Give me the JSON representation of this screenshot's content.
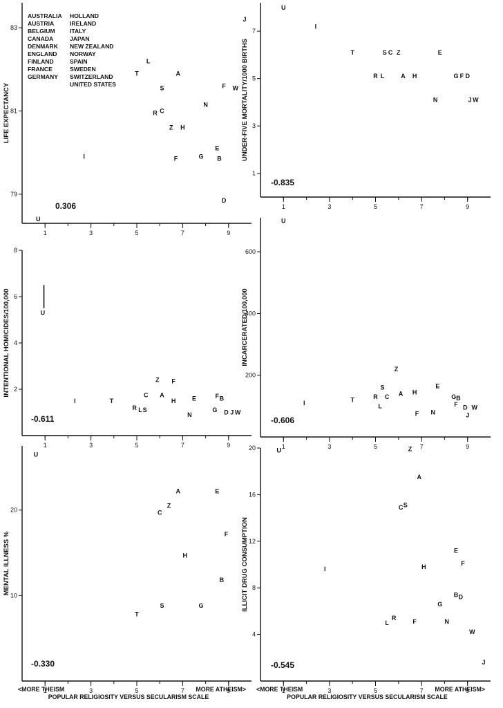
{
  "legend": {
    "col1": [
      "AUSTRALIA",
      "AUSTRIA",
      "BELGIUM",
      "CANADA",
      "DENMARK",
      "ENGLAND",
      "FINLAND",
      "FRANCE",
      "GERMANY"
    ],
    "col2": [
      "HOLLAND",
      "IRELAND",
      "ITALY",
      "JAPAN",
      "NEW ZEALAND",
      "NORWAY",
      "SPAIN",
      "SWEDEN",
      "SWITZERLAND",
      "UNITED STATES"
    ]
  },
  "x_axis_captions": {
    "left": "<MORE THEISM",
    "right": "MORE ATHEISM>",
    "bottom": "POPULAR RELIGIOSITY VERSUS SECULARISM SCALE"
  },
  "chart_data": [
    {
      "type": "scatter",
      "ylabel": "LIFE EXPECTANCY",
      "correlation": "0.306",
      "xlim": [
        0,
        10
      ],
      "ylim": [
        78.3,
        83.6
      ],
      "xticks": [
        1,
        3,
        5,
        7,
        9
      ],
      "yticks": [
        79,
        81,
        83
      ],
      "points": [
        {
          "label": "J",
          "x": 9.7,
          "y": 83.2
        },
        {
          "label": "L",
          "x": 5.5,
          "y": 82.2
        },
        {
          "label": "T",
          "x": 5.0,
          "y": 81.9
        },
        {
          "label": "A",
          "x": 6.8,
          "y": 81.9
        },
        {
          "label": "F",
          "x": 8.8,
          "y": 81.6
        },
        {
          "label": "W",
          "x": 9.3,
          "y": 81.55
        },
        {
          "label": "S",
          "x": 6.1,
          "y": 81.55
        },
        {
          "label": "N",
          "x": 8.0,
          "y": 81.15
        },
        {
          "label": "C",
          "x": 6.1,
          "y": 81.0
        },
        {
          "label": "R",
          "x": 5.8,
          "y": 80.95
        },
        {
          "label": "Z",
          "x": 6.5,
          "y": 80.6
        },
        {
          "label": "H",
          "x": 7.0,
          "y": 80.6
        },
        {
          "label": "E",
          "x": 8.5,
          "y": 80.1
        },
        {
          "label": "I",
          "x": 2.7,
          "y": 79.9
        },
        {
          "label": "G",
          "x": 7.8,
          "y": 79.9
        },
        {
          "label": "B",
          "x": 8.6,
          "y": 79.85
        },
        {
          "label": "F",
          "x": 6.7,
          "y": 79.85
        },
        {
          "label": "D",
          "x": 8.8,
          "y": 78.85
        },
        {
          "label": "U",
          "x": 0.7,
          "y": 78.4
        }
      ]
    },
    {
      "type": "scatter",
      "ylabel": "UNDER-FIVE MORTALITY/1000 BIRTHS",
      "correlation": "-0.835",
      "xlim": [
        0,
        10
      ],
      "ylim": [
        0,
        8.2
      ],
      "xticks": [
        1,
        3,
        5,
        7,
        9
      ],
      "yticks": [
        1,
        3,
        5,
        7
      ],
      "points": [
        {
          "label": "U",
          "x": 1.0,
          "y": 8.0
        },
        {
          "label": "I",
          "x": 2.4,
          "y": 7.2
        },
        {
          "label": "T",
          "x": 4.0,
          "y": 6.1
        },
        {
          "label": "S",
          "x": 5.4,
          "y": 6.1
        },
        {
          "label": "C",
          "x": 5.65,
          "y": 6.1
        },
        {
          "label": "Z",
          "x": 6.0,
          "y": 6.1
        },
        {
          "label": "E",
          "x": 7.8,
          "y": 6.1
        },
        {
          "label": "R",
          "x": 5.0,
          "y": 5.1
        },
        {
          "label": "L",
          "x": 5.3,
          "y": 5.1
        },
        {
          "label": "A",
          "x": 6.2,
          "y": 5.1
        },
        {
          "label": "H",
          "x": 6.7,
          "y": 5.1
        },
        {
          "label": "G",
          "x": 8.5,
          "y": 5.1
        },
        {
          "label": "F",
          "x": 8.75,
          "y": 5.1
        },
        {
          "label": "D",
          "x": 9.0,
          "y": 5.1
        },
        {
          "label": "N",
          "x": 7.6,
          "y": 4.1
        },
        {
          "label": "J",
          "x": 9.1,
          "y": 4.1
        },
        {
          "label": "W",
          "x": 9.35,
          "y": 4.1
        }
      ]
    },
    {
      "type": "scatter",
      "ylabel": "INTENTIONAL HOMICIDES/100,000",
      "correlation": "-0.611",
      "xlim": [
        0,
        10
      ],
      "ylim": [
        0,
        8
      ],
      "xticks": [
        1,
        3,
        5,
        7,
        9
      ],
      "yticks": [
        2,
        4,
        6,
        8
      ],
      "points": [
        {
          "label": "U",
          "x": 0.9,
          "y": 5.3
        },
        {
          "label": "Z",
          "x": 5.9,
          "y": 2.4
        },
        {
          "label": "F",
          "x": 6.6,
          "y": 2.35
        },
        {
          "label": "C",
          "x": 5.4,
          "y": 1.75
        },
        {
          "label": "A",
          "x": 6.1,
          "y": 1.75
        },
        {
          "label": "F",
          "x": 8.5,
          "y": 1.7
        },
        {
          "label": "B",
          "x": 8.7,
          "y": 1.6
        },
        {
          "label": "E",
          "x": 7.5,
          "y": 1.6
        },
        {
          "label": "H",
          "x": 6.6,
          "y": 1.5
        },
        {
          "label": "I",
          "x": 2.3,
          "y": 1.5
        },
        {
          "label": "T",
          "x": 3.9,
          "y": 1.5
        },
        {
          "label": "R",
          "x": 4.9,
          "y": 1.2
        },
        {
          "label": "L",
          "x": 5.15,
          "y": 1.1
        },
        {
          "label": "S",
          "x": 5.35,
          "y": 1.1
        },
        {
          "label": "G",
          "x": 8.4,
          "y": 1.1
        },
        {
          "label": "D",
          "x": 8.9,
          "y": 1.0
        },
        {
          "label": "J",
          "x": 9.15,
          "y": 1.0
        },
        {
          "label": "W",
          "x": 9.4,
          "y": 1.0
        },
        {
          "label": "N",
          "x": 7.3,
          "y": 0.9
        }
      ],
      "range_bar": {
        "label": "U",
        "x": 0.95,
        "y_low": 5.5,
        "y_high": 6.5
      }
    },
    {
      "type": "scatter",
      "ylabel": "INCARCERATED/100,000",
      "correlation": "-0.606",
      "xlim": [
        0,
        10
      ],
      "ylim": [
        0,
        710
      ],
      "xticks": [
        1,
        3,
        5,
        7,
        9
      ],
      "yticks": [
        200,
        400,
        600
      ],
      "points": [
        {
          "label": "U",
          "x": 1.0,
          "y": 700
        },
        {
          "label": "Z",
          "x": 5.9,
          "y": 220
        },
        {
          "label": "E",
          "x": 7.7,
          "y": 165
        },
        {
          "label": "S",
          "x": 5.3,
          "y": 160
        },
        {
          "label": "H",
          "x": 6.7,
          "y": 145
        },
        {
          "label": "A",
          "x": 6.1,
          "y": 140
        },
        {
          "label": "R",
          "x": 5.0,
          "y": 130
        },
        {
          "label": "C",
          "x": 5.5,
          "y": 130
        },
        {
          "label": "G",
          "x": 8.4,
          "y": 130
        },
        {
          "label": "B",
          "x": 8.6,
          "y": 125
        },
        {
          "label": "T",
          "x": 4.0,
          "y": 120
        },
        {
          "label": "F",
          "x": 8.5,
          "y": 105
        },
        {
          "label": "I",
          "x": 1.9,
          "y": 110
        },
        {
          "label": "L",
          "x": 5.2,
          "y": 100
        },
        {
          "label": "D",
          "x": 8.9,
          "y": 95
        },
        {
          "label": "W",
          "x": 9.3,
          "y": 95
        },
        {
          "label": "F",
          "x": 6.8,
          "y": 75
        },
        {
          "label": "N",
          "x": 7.5,
          "y": 80
        },
        {
          "label": "J",
          "x": 9.0,
          "y": 70
        }
      ]
    },
    {
      "type": "scatter",
      "ylabel": "MENTAL ILLNESS %",
      "correlation": "-0.330",
      "xlim": [
        0,
        10
      ],
      "ylim": [
        0,
        27.5
      ],
      "xticks": [
        1,
        3,
        5,
        7,
        9
      ],
      "yticks": [
        10,
        20
      ],
      "points": [
        {
          "label": "U",
          "x": 0.6,
          "y": 26.5
        },
        {
          "label": "A",
          "x": 6.8,
          "y": 22.2
        },
        {
          "label": "E",
          "x": 8.5,
          "y": 22.2
        },
        {
          "label": "Z",
          "x": 6.4,
          "y": 20.5
        },
        {
          "label": "C",
          "x": 6.0,
          "y": 19.7
        },
        {
          "label": "F",
          "x": 8.9,
          "y": 17.2
        },
        {
          "label": "H",
          "x": 7.1,
          "y": 14.7
        },
        {
          "label": "B",
          "x": 8.7,
          "y": 11.8
        },
        {
          "label": "S",
          "x": 6.1,
          "y": 8.8
        },
        {
          "label": "G",
          "x": 7.8,
          "y": 8.8
        },
        {
          "label": "T",
          "x": 5.0,
          "y": 7.8
        }
      ]
    },
    {
      "type": "scatter",
      "ylabel": "ILLICIT DRUG CONSUMPTION",
      "correlation": "-0.545",
      "xlim": [
        0,
        10
      ],
      "ylim": [
        0,
        20
      ],
      "xticks": [
        1,
        3,
        5,
        7,
        9
      ],
      "yticks": [
        4,
        8,
        12,
        16,
        20
      ],
      "points": [
        {
          "label": "U",
          "x": 0.8,
          "y": 19.8
        },
        {
          "label": "Z",
          "x": 6.5,
          "y": 19.9
        },
        {
          "label": "A",
          "x": 6.9,
          "y": 17.5
        },
        {
          "label": "S",
          "x": 6.3,
          "y": 15.1
        },
        {
          "label": "C",
          "x": 6.1,
          "y": 14.9
        },
        {
          "label": "E",
          "x": 8.5,
          "y": 11.2
        },
        {
          "label": "F",
          "x": 8.8,
          "y": 10.1
        },
        {
          "label": "H",
          "x": 7.1,
          "y": 9.8
        },
        {
          "label": "I",
          "x": 2.8,
          "y": 9.6
        },
        {
          "label": "B",
          "x": 8.5,
          "y": 7.4
        },
        {
          "label": "D",
          "x": 8.7,
          "y": 7.2
        },
        {
          "label": "G",
          "x": 7.8,
          "y": 6.6
        },
        {
          "label": "R",
          "x": 5.8,
          "y": 5.4
        },
        {
          "label": "F",
          "x": 6.7,
          "y": 5.1
        },
        {
          "label": "N",
          "x": 8.1,
          "y": 5.1
        },
        {
          "label": "L",
          "x": 5.5,
          "y": 5.0
        },
        {
          "label": "W",
          "x": 9.2,
          "y": 4.2
        },
        {
          "label": "J",
          "x": 9.7,
          "y": 1.6
        }
      ]
    }
  ]
}
